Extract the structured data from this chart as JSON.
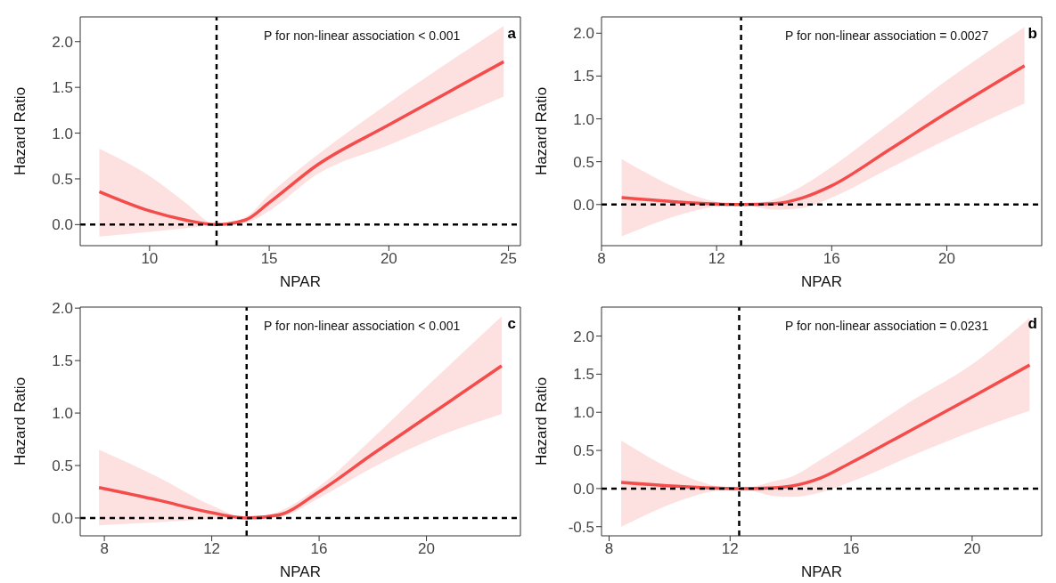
{
  "chart_data": [
    {
      "type": "line",
      "xlabel": "NPAR",
      "ylabel": "Hazard Ratio",
      "annotations": [
        "P for non-linear association < 0.001",
        "a"
      ],
      "xlim": [
        7.1,
        25.5
      ],
      "ylim": [
        -0.23,
        2.27
      ],
      "xticks": [
        10,
        15,
        20,
        25
      ],
      "yticks": [
        {
          "value": 0,
          "label": "0.0"
        },
        {
          "value": 0.5,
          "label": "0.5"
        },
        {
          "value": 1,
          "label": "1.0"
        },
        {
          "value": 1.5,
          "label": "1.5"
        },
        {
          "value": 2,
          "label": "2.0"
        }
      ],
      "series": [
        {
          "color": "#f44b4b",
          "x": [
            7.9,
            10,
            11.5,
            12.8,
            14,
            15,
            17,
            20,
            24.8
          ],
          "values": [
            0.36,
            0.15,
            0.05,
            0,
            0.05,
            0.24,
            0.65,
            1.09,
            1.78
          ],
          "lower": [
            -0.13,
            -0.08,
            -0.04,
            0,
            0.02,
            0.15,
            0.55,
            0.87,
            1.4
          ],
          "upper": [
            0.83,
            0.53,
            0.24,
            0,
            0.08,
            0.33,
            0.76,
            1.33,
            2.17
          ]
        }
      ],
      "ref_lines": [
        {
          "axis": "x",
          "value": 12.8,
          "line_style": "dashed"
        },
        {
          "axis": "y",
          "value": 0,
          "line_style": "dashed"
        }
      ]
    },
    {
      "type": "line",
      "xlabel": "NPAR",
      "ylabel": "Hazard Ratio",
      "annotations": [
        "P for non-linear association = 0.0027",
        "b"
      ],
      "xlim": [
        8,
        23.3
      ],
      "ylim": [
        -0.48,
        2.19
      ],
      "xticks": [
        8,
        12,
        16,
        20
      ],
      "yticks": [
        {
          "value": 0,
          "label": "0.0"
        },
        {
          "value": 0.5,
          "label": "0.5"
        },
        {
          "value": 1,
          "label": "1.0"
        },
        {
          "value": 1.5,
          "label": "1.5"
        },
        {
          "value": 2,
          "label": "2.0"
        }
      ],
      "series": [
        {
          "color": "#f44b4b",
          "x": [
            8.7,
            12.85,
            14,
            15,
            16,
            18,
            20,
            22.7
          ],
          "values": [
            0.08,
            0,
            0.01,
            0.08,
            0.22,
            0.64,
            1.07,
            1.62
          ],
          "lower": [
            -0.37,
            0,
            -0.06,
            -0.04,
            0.08,
            0.42,
            0.76,
            1.18
          ],
          "upper": [
            0.53,
            0,
            0.06,
            0.22,
            0.44,
            0.94,
            1.45,
            2.07
          ]
        }
      ],
      "ref_lines": [
        {
          "axis": "x",
          "value": 12.85,
          "line_style": "dashed"
        },
        {
          "axis": "y",
          "value": 0,
          "line_style": "dashed"
        }
      ]
    },
    {
      "type": "line",
      "xlabel": "NPAR",
      "ylabel": "Hazard Ratio",
      "annotations": [
        "P for non-linear association < 0.001",
        "c"
      ],
      "xlim": [
        7.1,
        23.5
      ],
      "ylim": [
        -0.17,
        2.01
      ],
      "xticks": [
        8,
        12,
        16,
        20
      ],
      "yticks": [
        {
          "value": 0,
          "label": "0.0"
        },
        {
          "value": 0.5,
          "label": "0.5"
        },
        {
          "value": 1,
          "label": "1.0"
        },
        {
          "value": 1.5,
          "label": "1.5"
        },
        {
          "value": 2,
          "label": "2.0"
        }
      ],
      "series": [
        {
          "color": "#f44b4b",
          "x": [
            7.8,
            10,
            12,
            13.3,
            14.5,
            16,
            18,
            20,
            22.8
          ],
          "values": [
            0.29,
            0.17,
            0.05,
            0,
            0.03,
            0.25,
            0.61,
            0.96,
            1.45
          ],
          "lower": [
            -0.07,
            -0.04,
            -0.01,
            0,
            0.01,
            0.19,
            0.48,
            0.73,
            0.99
          ],
          "upper": [
            0.65,
            0.39,
            0.12,
            0,
            0.06,
            0.3,
            0.76,
            1.25,
            1.92
          ]
        }
      ],
      "ref_lines": [
        {
          "axis": "x",
          "value": 13.3,
          "line_style": "dashed"
        },
        {
          "axis": "y",
          "value": 0,
          "line_style": "dashed"
        }
      ]
    },
    {
      "type": "line",
      "xlabel": "NPAR",
      "ylabel": "Hazard Ratio",
      "annotations": [
        "P for non-linear association = 0.0231",
        "d"
      ],
      "xlim": [
        7.75,
        22.3
      ],
      "ylim": [
        -0.62,
        2.38
      ],
      "xticks": [
        8,
        12,
        16,
        20
      ],
      "yticks": [
        {
          "value": -0.5,
          "label": "-0.5"
        },
        {
          "value": 0,
          "label": "0.0"
        },
        {
          "value": 0.5,
          "label": "0.5"
        },
        {
          "value": 1,
          "label": "1.0"
        },
        {
          "value": 1.5,
          "label": "1.5"
        },
        {
          "value": 2,
          "label": "2.0"
        }
      ],
      "series": [
        {
          "color": "#f44b4b",
          "x": [
            8.4,
            12.3,
            13.5,
            14,
            15,
            16,
            18,
            20,
            21.9
          ],
          "values": [
            0.08,
            0,
            0.01,
            0.03,
            0.14,
            0.34,
            0.77,
            1.2,
            1.62
          ],
          "lower": [
            -0.5,
            0,
            -0.1,
            -0.11,
            -0.05,
            0.09,
            0.43,
            0.75,
            1.02
          ],
          "upper": [
            0.63,
            0,
            0.1,
            0.15,
            0.38,
            0.63,
            1.15,
            1.63,
            2.24
          ]
        }
      ],
      "ref_lines": [
        {
          "axis": "x",
          "value": 12.3,
          "line_style": "dashed"
        },
        {
          "axis": "y",
          "value": 0,
          "line_style": "dashed"
        }
      ]
    }
  ]
}
